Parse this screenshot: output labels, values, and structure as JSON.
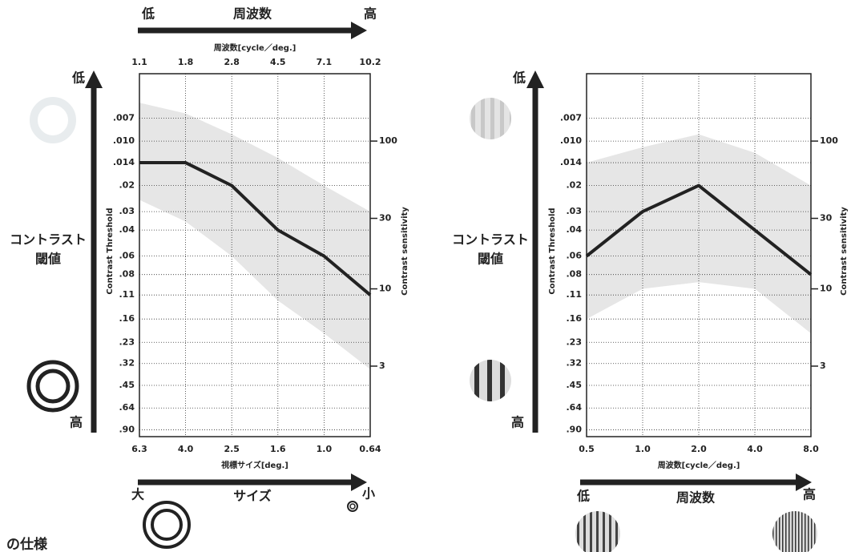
{
  "chart_data": [
    {
      "type": "line",
      "top_x_label": "周波数[cycle／deg.]",
      "top_categories": [
        "1.1",
        "1.8",
        "2.8",
        "4.5",
        "7.1",
        "10.2"
      ],
      "x_label": "視標サイズ[deg.]",
      "categories": [
        "6.3",
        "4.0",
        "2.5",
        "1.6",
        "1.0",
        "0.64"
      ],
      "values": [
        0.014,
        0.014,
        0.02,
        0.04,
        0.06,
        0.11
      ],
      "color": "#222222",
      "band": {
        "color": "#e6e6e6",
        "lower": [
          0.0055,
          0.0065,
          0.009,
          0.013,
          0.02,
          0.03
        ],
        "upper": [
          0.025,
          0.035,
          0.06,
          0.12,
          0.2,
          0.35
        ]
      },
      "y_label": "Contrast Threshold",
      "y_log": true,
      "y_inverted": true,
      "ylim": [
        0.0035,
        1.0
      ],
      "yticks": [
        {
          "value": 0.007,
          "label": ".007"
        },
        {
          "value": 0.01,
          "label": ".010"
        },
        {
          "value": 0.014,
          "label": ".014"
        },
        {
          "value": 0.02,
          "label": ".02"
        },
        {
          "value": 0.03,
          "label": ".03"
        },
        {
          "value": 0.04,
          "label": ".04"
        },
        {
          "value": 0.06,
          "label": ".06"
        },
        {
          "value": 0.08,
          "label": ".08"
        },
        {
          "value": 0.11,
          "label": ".11"
        },
        {
          "value": 0.16,
          "label": ".16"
        },
        {
          "value": 0.23,
          "label": ".23"
        },
        {
          "value": 0.32,
          "label": ".32"
        },
        {
          "value": 0.45,
          "label": ".45"
        },
        {
          "value": 0.64,
          "label": ".64"
        },
        {
          "value": 0.9,
          "label": ".90"
        }
      ],
      "y2_label": "Contrast sensitivity",
      "y2lim": [
        1,
        285.7
      ],
      "y2ticks": [
        100,
        30,
        10,
        3
      ],
      "grid": true,
      "annotations": {
        "y_low": "低",
        "y_high": "高",
        "y_name_1": "コントラスト",
        "y_name_2": "閾値",
        "top_low": "低",
        "top_name": "周波数",
        "top_high": "高",
        "bottom_large": "大",
        "bottom_name": "サイズ",
        "bottom_small": "小"
      }
    },
    {
      "type": "line",
      "x_label": "周波数[cycle／deg.]",
      "categories": [
        "0.5",
        "1.0",
        "2.0",
        "4.0",
        "8.0"
      ],
      "values": [
        0.06,
        0.03,
        0.02,
        0.04,
        0.08
      ],
      "color": "#222222",
      "band": {
        "color": "#e6e6e6",
        "lower": [
          0.014,
          0.011,
          0.009,
          0.012,
          0.02
        ],
        "upper": [
          0.16,
          0.1,
          0.09,
          0.1,
          0.2
        ]
      },
      "y_label": "Contrast Threshold",
      "y_log": true,
      "y_inverted": true,
      "ylim": [
        0.0035,
        1.0
      ],
      "yticks": [
        {
          "value": 0.007,
          "label": ".007"
        },
        {
          "value": 0.01,
          "label": ".010"
        },
        {
          "value": 0.014,
          "label": ".014"
        },
        {
          "value": 0.02,
          "label": ".02"
        },
        {
          "value": 0.03,
          "label": ".03"
        },
        {
          "value": 0.04,
          "label": ".04"
        },
        {
          "value": 0.06,
          "label": ".06"
        },
        {
          "value": 0.08,
          "label": ".08"
        },
        {
          "value": 0.11,
          "label": ".11"
        },
        {
          "value": 0.16,
          "label": ".16"
        },
        {
          "value": 0.23,
          "label": ".23"
        },
        {
          "value": 0.32,
          "label": ".32"
        },
        {
          "value": 0.45,
          "label": ".45"
        },
        {
          "value": 0.64,
          "label": ".64"
        },
        {
          "value": 0.9,
          "label": ".90"
        }
      ],
      "y2_label": "Contrast sensitivity",
      "y2lim": [
        1,
        285.7
      ],
      "y2ticks": [
        100,
        30,
        10,
        3
      ],
      "grid": true,
      "annotations": {
        "y_low": "低",
        "y_high": "高",
        "y_name_1": "コントラスト",
        "y_name_2": "閾値",
        "bottom_low": "低",
        "bottom_name": "周波数",
        "bottom_high": "高"
      }
    }
  ],
  "footer_text": "の仕様"
}
